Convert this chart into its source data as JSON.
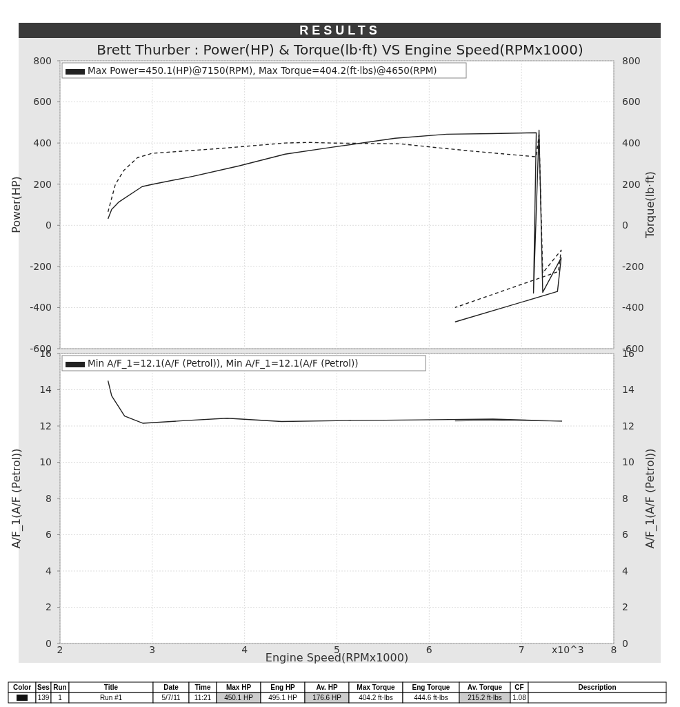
{
  "chart_data": [
    {
      "type": "line",
      "title": "RESULTS",
      "subtitle": "Brett Thurber : Power(HP) & Torque(lb·ft) VS Engine Speed(RPMx1000)",
      "ylabel": "Power(HP)",
      "y2label": "Torque(lb·ft)",
      "annotations": [
        "Max Power=450.1(HP)@7150(RPM), Max Torque=404.2(ft·lbs)@4650(RPM)"
      ],
      "xlim": [
        2,
        8
      ],
      "xticks": [
        2,
        3,
        4,
        5,
        6,
        7,
        8
      ],
      "ylim": [
        -600,
        800
      ],
      "yticks": [
        -600,
        -400,
        -200,
        0,
        200,
        400,
        600,
        800
      ],
      "y2lim": [
        -600,
        800
      ],
      "y2ticks": [
        -600,
        -400,
        -200,
        0,
        200,
        400,
        600,
        800
      ],
      "grid": true,
      "tick_labels": "y",
      "series": [
        {
          "color": "#222222",
          "line_style": "solid",
          "x": [
            2.52,
            2.56,
            2.64,
            2.89,
            3.0,
            3.44,
            3.94,
            4.44,
            4.94,
            5.63,
            6.19,
            6.68,
            7.16,
            7.13,
            7.19,
            7.23,
            7.43,
            7.39,
            6.28
          ],
          "values": [
            31,
            77,
            114,
            188,
            199,
            238,
            289,
            346,
            379,
            423,
            443,
            446,
            450,
            -330,
            463,
            -326,
            -158,
            -322,
            -470
          ]
        },
        {
          "color": "#222222",
          "line_style": "dashed",
          "x": [
            2.52,
            2.6,
            2.69,
            2.84,
            3.0,
            3.69,
            4.44,
            4.69,
            4.94,
            5.68,
            6.43,
            7.16,
            7.19,
            7.23,
            7.43,
            7.4,
            6.28
          ],
          "values": [
            65,
            199,
            266,
            329,
            350,
            372,
            400,
            403,
            400,
            396,
            362,
            333,
            440,
            -232,
            -121,
            -225,
            -400
          ]
        }
      ]
    },
    {
      "type": "line",
      "ylabel": "A/F_1(A/F (Petrol))",
      "y2label": "A/F_1(A/F (Petrol))",
      "xlabel": "Engine Speed(RPMx1000)",
      "annotations": [
        "Min A/F_1=12.1(A/F (Petrol)), Min A/F_1=12.1(A/F (Petrol))",
        "x10^3"
      ],
      "xlim": [
        2,
        8
      ],
      "xticks": [
        2,
        3,
        4,
        5,
        6,
        7,
        8
      ],
      "ylim": [
        0,
        16
      ],
      "yticks": [
        0,
        2,
        4,
        6,
        8,
        10,
        12,
        14,
        16
      ],
      "y2lim": [
        0,
        16
      ],
      "y2ticks": [
        0,
        2,
        4,
        6,
        8,
        10,
        12,
        14,
        16
      ],
      "grid": true,
      "series": [
        {
          "color": "#222222",
          "line_style": "solid",
          "x": [
            2.52,
            2.56,
            2.7,
            2.9,
            3.33,
            3.81,
            4.4,
            5.11,
            5.9,
            6.69,
            7.44
          ],
          "values": [
            14.5,
            13.66,
            12.55,
            12.15,
            12.29,
            12.43,
            12.25,
            12.3,
            12.34,
            12.38,
            12.27
          ]
        },
        {
          "color": "#555555",
          "line_style": "solid",
          "x": [
            6.28,
            6.8,
            7.44
          ],
          "values": [
            12.28,
            12.32,
            12.27
          ]
        }
      ]
    },
    {
      "type": "other",
      "annotations": [
        "Color",
        "Ses",
        "Run",
        "Title",
        "Date",
        "Time",
        "Max HP",
        "Eng HP",
        "Av. HP",
        "Max Torque",
        "Eng Torque",
        "Av. Torque",
        "CF",
        "Description",
        "139",
        "1",
        "Run #1",
        "5/7/11",
        "11:21",
        "450.1 HP",
        "495.1 HP",
        "176.6 HP",
        "404.2 ft·lbs",
        "444.6 ft·lbs",
        "215.2 ft·lbs",
        "1.08"
      ]
    }
  ]
}
